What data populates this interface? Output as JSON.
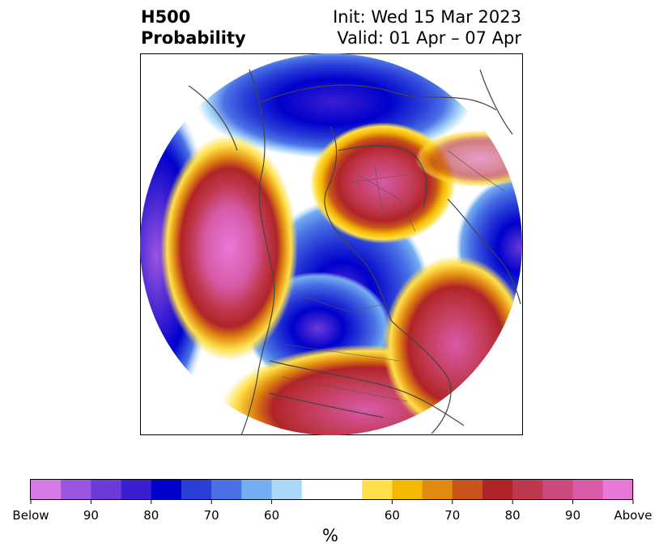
{
  "title": {
    "line1": "H500",
    "line2": "Probability",
    "init": "Init: Wed 15 Mar 2023",
    "valid": "Valid: 01 Apr – 07 Apr"
  },
  "colorbar": {
    "unit_label": "%",
    "tick_labels": [
      "Below",
      "90",
      "80",
      "70",
      "60",
      "60",
      "70",
      "80",
      "90",
      "Above"
    ],
    "below_colors": [
      "#d67ae8",
      "#9b55e0",
      "#6b3ad8",
      "#3a1fd2",
      "#0000cc",
      "#2a3fd8",
      "#4a72e6",
      "#74adf0",
      "#aad7f8"
    ],
    "neutral_color": "#ffffff",
    "above_colors": [
      "#ffe04a",
      "#f4b800",
      "#e08a10",
      "#c8541a",
      "#b02428",
      "#c0384e",
      "#cc4a80",
      "#d85aa8",
      "#e878d8"
    ]
  }
}
